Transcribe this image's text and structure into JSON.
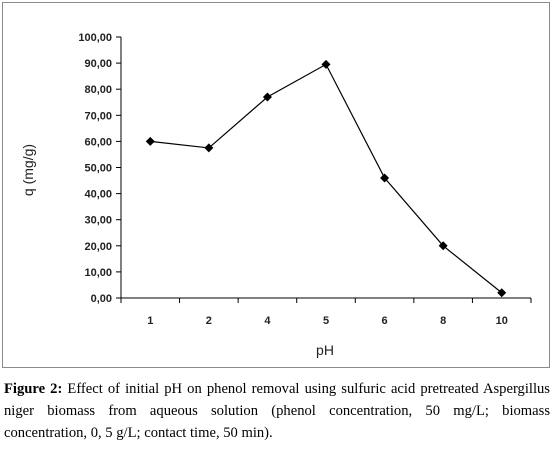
{
  "chart_data": {
    "type": "line",
    "categories": [
      "1",
      "2",
      "4",
      "5",
      "6",
      "8",
      "10"
    ],
    "values": [
      60.0,
      57.5,
      77.0,
      89.5,
      46.0,
      20.0,
      2.0
    ],
    "xlabel": "pH",
    "ylabel": "q (mg/g)",
    "ylim": [
      0,
      100
    ],
    "yticks": [
      "0,00",
      "10,00",
      "20,00",
      "30,00",
      "40,00",
      "50,00",
      "60,00",
      "70,00",
      "80,00",
      "90,00",
      "100,00"
    ],
    "grid": false,
    "legend": "none",
    "line_color": "#000000",
    "marker": "diamond"
  },
  "caption": {
    "label": "Figure 2:",
    "text": " Effect of initial pH on phenol removal using sulfuric acid pretreated Aspergillus niger biomass from aqueous solution (phenol concentration, 50 mg/L; biomass concentration, 0, 5 g/L; contact time, 50 min)."
  }
}
